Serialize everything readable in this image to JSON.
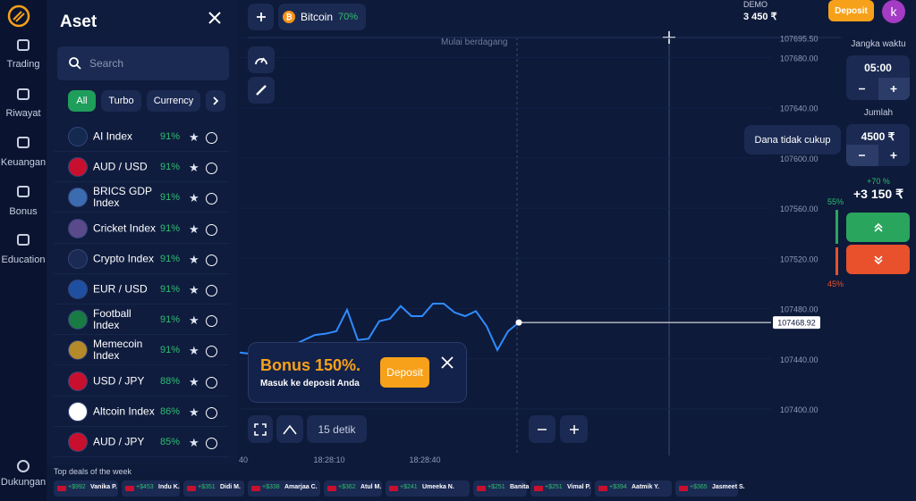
{
  "sidebar": {
    "items": [
      "Trading",
      "Riwayat",
      "Keuangan",
      "Bonus",
      "Education"
    ],
    "support": "Dukungan"
  },
  "assets": {
    "title": "Aset",
    "search": "Search",
    "filters": [
      "All",
      "Turbo",
      "Currency"
    ],
    "list": [
      {
        "name": "AI Index",
        "payout": "91%"
      },
      {
        "name": "AUD / USD",
        "payout": "91%"
      },
      {
        "name": "BRICS GDP Index",
        "payout": "91%"
      },
      {
        "name": "Cricket Index",
        "payout": "91%"
      },
      {
        "name": "Crypto Index",
        "payout": "91%"
      },
      {
        "name": "EUR / USD",
        "payout": "91%"
      },
      {
        "name": "Football Index",
        "payout": "91%"
      },
      {
        "name": "Memecoin Index",
        "payout": "91%"
      },
      {
        "name": "USD / JPY",
        "payout": "88%"
      },
      {
        "name": "Altcoin Index",
        "payout": "86%"
      },
      {
        "name": "AUD / JPY",
        "payout": "85%"
      }
    ]
  },
  "topbar": {
    "asset": "Bitcoin",
    "payout": "70%",
    "account": "DEMO",
    "balance": "3 450 ₹",
    "deposit": "Deposit",
    "avatar": "k"
  },
  "chart": {
    "note": "Mulai berdagang",
    "ylim": [
      107363,
      107696
    ],
    "yticks": [
      {
        "value": 107695.5,
        "label": "107695.50"
      },
      {
        "value": 107680,
        "label": "107680.00"
      },
      {
        "value": 107640,
        "label": "107640.00"
      },
      {
        "value": 107600,
        "label": "107600.00"
      },
      {
        "value": 107560,
        "label": "107560.00"
      },
      {
        "value": 107520,
        "label": "107520.00"
      },
      {
        "value": 107480,
        "label": "107480.00"
      },
      {
        "value": 107440,
        "label": "107440.00"
      },
      {
        "value": 107400,
        "label": "107400.00"
      }
    ],
    "values": [
      107445,
      107444,
      107448,
      107451,
      107451,
      107451,
      107455,
      107459,
      107460,
      107462,
      107479,
      107455,
      107456,
      107470,
      107472,
      107482,
      107474,
      107474,
      107484,
      107484,
      107477,
      107474,
      107478,
      107466,
      107447,
      107462,
      107468.92
    ],
    "xticks": [
      "40",
      "18:28:10",
      "18:28:40"
    ]
  },
  "controls": {
    "period": "15 detik"
  },
  "bonus": {
    "title": "Bonus 150%.",
    "text": "Masuk ke deposit Anda",
    "button": "Deposit"
  },
  "trade": {
    "time_label": "Jangka waktu",
    "time": "05:00",
    "amount_label": "Jumlah",
    "amount": "4500 ₹",
    "warning": "Dana tidak cukup",
    "profit_pct": "+70 %",
    "profit": "+3 150 ₹",
    "up_pct": "55%",
    "down_pct": "45%"
  },
  "deals": {
    "title": "Top deals of the week",
    "list": [
      {
        "amount": "+$992",
        "name": "Vanika P."
      },
      {
        "amount": "+$453",
        "name": "Indu K."
      },
      {
        "amount": "+$351",
        "name": "Didi M."
      },
      {
        "amount": "+$338",
        "name": "Amarjaa C."
      },
      {
        "amount": "+$362",
        "name": "Atul M."
      },
      {
        "amount": "+$241",
        "name": "Umeeka N."
      },
      {
        "amount": "+$251",
        "name": "Banita R."
      },
      {
        "amount": "+$251",
        "name": "Vimal P."
      },
      {
        "amount": "+$394",
        "name": "Aatmik Y."
      },
      {
        "amount": "+$365",
        "name": "Jasmeet S."
      }
    ]
  }
}
